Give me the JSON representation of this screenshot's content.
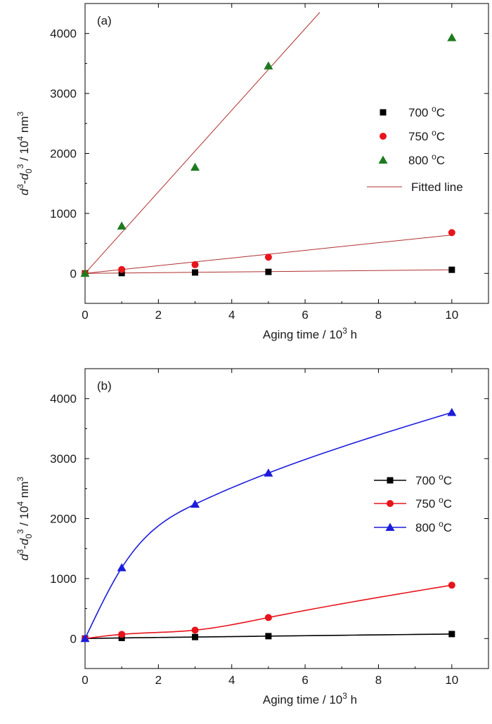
{
  "chart_data": [
    {
      "type": "scatter",
      "panel_label": "(a)",
      "xlabel": "Aging time / 10³ h",
      "ylabel": "d³-d₀³ / 10⁴ nm³",
      "xlim": [
        0,
        11
      ],
      "ylim": [
        -500,
        4500
      ],
      "x_ticks": [
        0,
        2,
        4,
        6,
        8,
        10
      ],
      "y_ticks": [
        0,
        1000,
        2000,
        3000,
        4000
      ],
      "grid": false,
      "legend_position": "right",
      "series": [
        {
          "name": "700 °C",
          "marker": "square",
          "color": "#000000",
          "x": [
            0,
            1,
            3,
            5,
            10
          ],
          "y": [
            0,
            5,
            15,
            25,
            60
          ]
        },
        {
          "name": "750 °C",
          "marker": "circle",
          "color": "#e8141b",
          "x": [
            0,
            1,
            3,
            5,
            10
          ],
          "y": [
            0,
            65,
            145,
            270,
            680
          ]
        },
        {
          "name": "800 °C",
          "marker": "triangle",
          "color": "#1e7a1e",
          "x": [
            0,
            1,
            3,
            5,
            10
          ],
          "y": [
            0,
            790,
            1770,
            3460,
            3930
          ]
        }
      ],
      "fitted_lines": [
        {
          "name": "Fitted line",
          "color": "#b03030",
          "slope": 680,
          "x_end": 6.4
        },
        {
          "color": "#b03030",
          "slope": 64,
          "x_end": 10
        },
        {
          "color": "#b03030",
          "slope": 6,
          "x_end": 10
        }
      ]
    },
    {
      "type": "line",
      "panel_label": "(b)",
      "xlabel": "Aging time / 10³ h",
      "ylabel": "d³-d₀³ / 10⁴ nm³",
      "xlim": [
        0,
        11
      ],
      "ylim": [
        -500,
        4500
      ],
      "x_ticks": [
        0,
        2,
        4,
        6,
        8,
        10
      ],
      "y_ticks": [
        0,
        1000,
        2000,
        3000,
        4000
      ],
      "grid": false,
      "legend_position": "right",
      "series": [
        {
          "name": "700 °C",
          "marker": "square",
          "color": "#000000",
          "x": [
            0,
            1,
            3,
            5,
            10
          ],
          "y": [
            0,
            10,
            25,
            40,
            75
          ]
        },
        {
          "name": "750 °C",
          "marker": "circle",
          "color": "#e8141b",
          "x": [
            0,
            1,
            3,
            5,
            10
          ],
          "y": [
            0,
            70,
            140,
            350,
            890
          ]
        },
        {
          "name": "800 °C",
          "marker": "triangle",
          "color": "#1c1cdc",
          "x": [
            0,
            1,
            3,
            5,
            10
          ],
          "y": [
            0,
            1180,
            2240,
            2760,
            3770
          ]
        }
      ]
    }
  ]
}
